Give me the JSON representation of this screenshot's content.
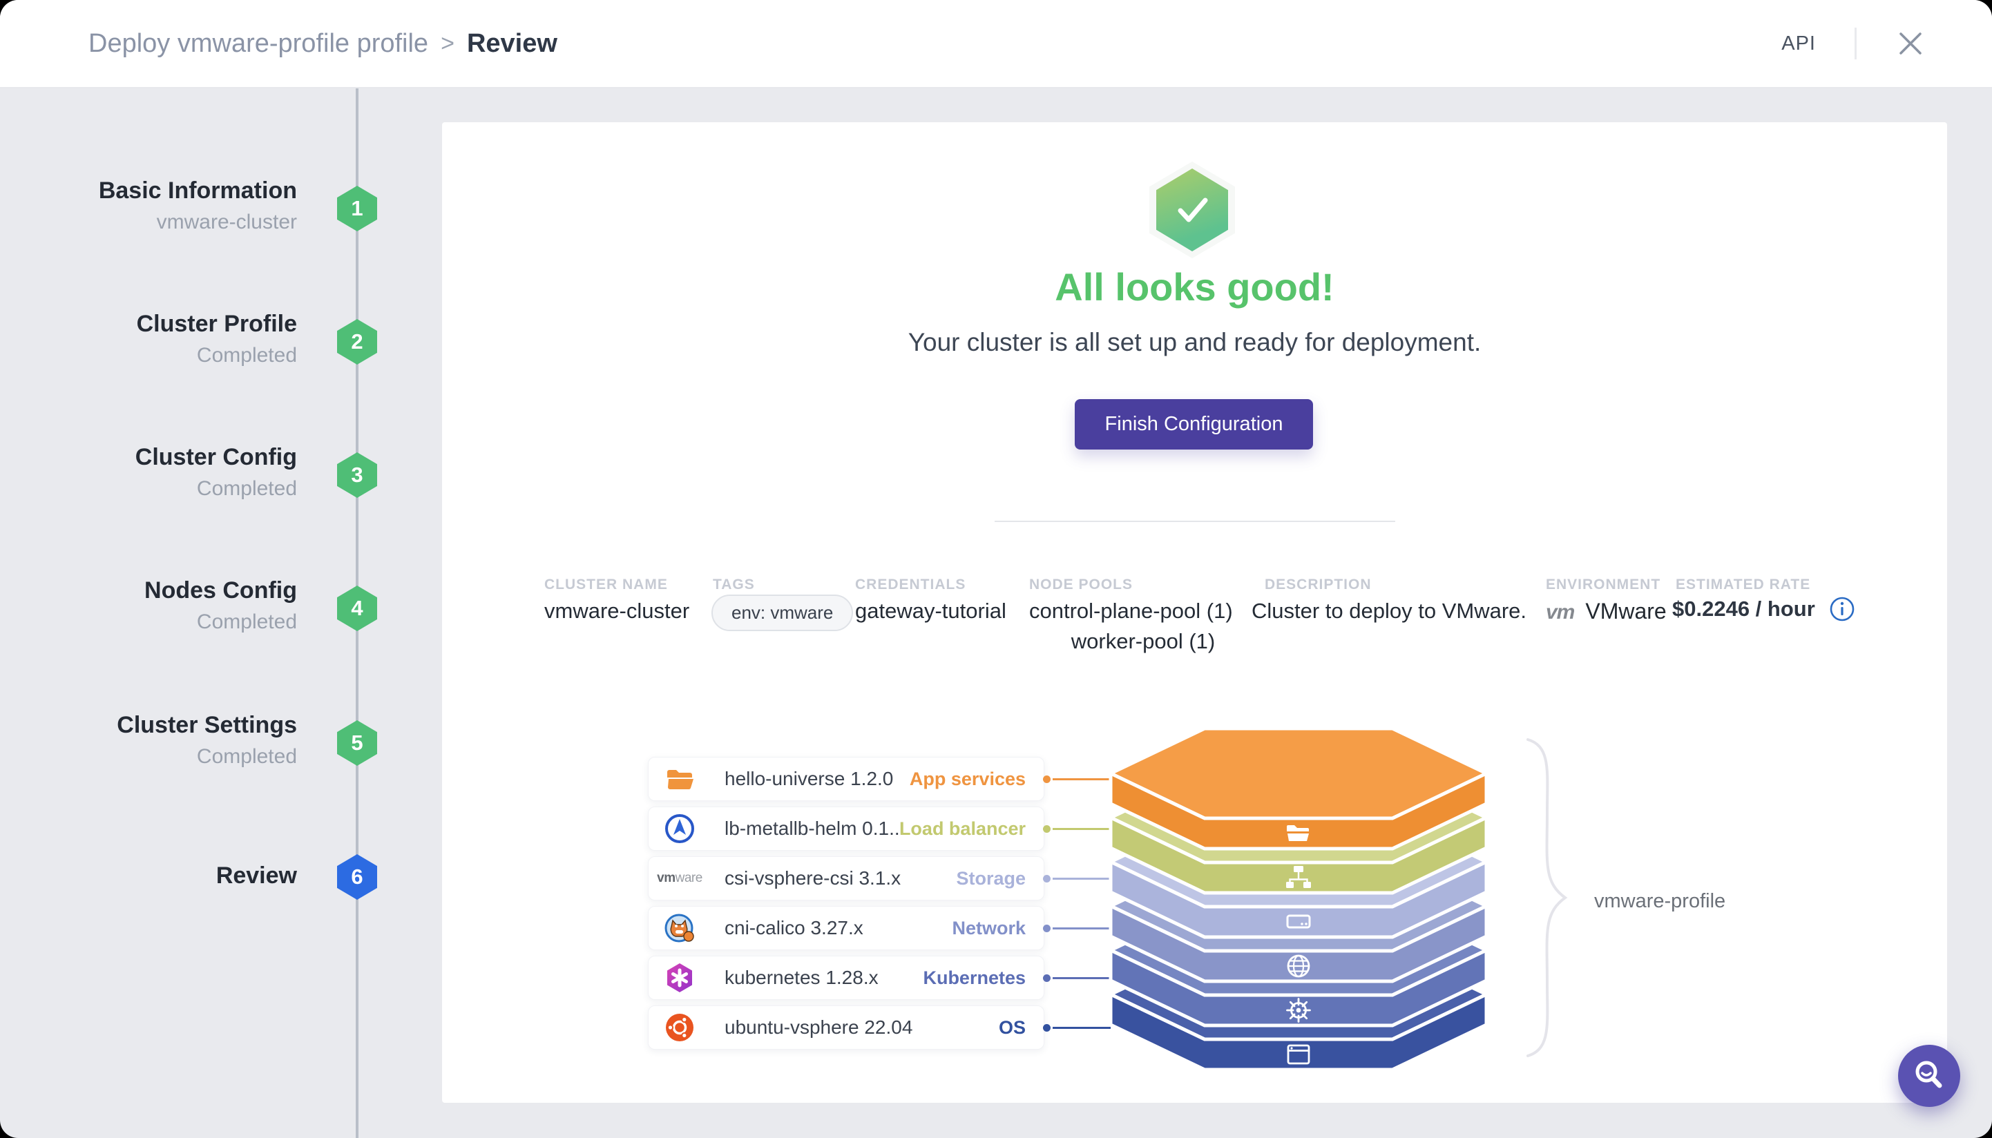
{
  "header": {
    "title_prefix": "Deploy vmware-profile profile",
    "separator": ">",
    "title_current": "Review",
    "api_label": "API"
  },
  "steps": [
    {
      "number": "1",
      "title": "Basic Information",
      "subtitle": "vmware-cluster",
      "state": "done"
    },
    {
      "number": "2",
      "title": "Cluster Profile",
      "subtitle": "Completed",
      "state": "done"
    },
    {
      "number": "3",
      "title": "Cluster Config",
      "subtitle": "Completed",
      "state": "done"
    },
    {
      "number": "4",
      "title": "Nodes Config",
      "subtitle": "Completed",
      "state": "done"
    },
    {
      "number": "5",
      "title": "Cluster Settings",
      "subtitle": "Completed",
      "state": "done"
    },
    {
      "number": "6",
      "title": "Review",
      "subtitle": "",
      "state": "active"
    }
  ],
  "step_colors": {
    "done": "#4fbe76",
    "active": "#2c6be2"
  },
  "status": {
    "icon": "check-hexagon-icon",
    "title": "All looks good!",
    "subtitle": "Your cluster is all set up and ready for deployment.",
    "button_label": "Finish Configuration",
    "title_color": "#57c36b",
    "button_color": "#4a3f9e"
  },
  "summary": {
    "cluster_name": {
      "label": "CLUSTER NAME",
      "value": "vmware-cluster"
    },
    "tags": {
      "label": "TAGS",
      "value": "env: vmware"
    },
    "credentials": {
      "label": "CREDENTIALS",
      "value": "gateway-tutorial"
    },
    "node_pools": {
      "label": "NODE POOLS",
      "values": [
        "control-plane-pool (1)",
        "worker-pool (1)"
      ]
    },
    "description": {
      "label": "DESCRIPTION",
      "value": "Cluster to deploy to VMware."
    },
    "environment": {
      "label": "ENVIRONMENT",
      "logo": "vmware-vm-logo",
      "value": "VMware"
    },
    "estimated_rate": {
      "label": "ESTIMATED RATE",
      "value": "$0.2246 / hour",
      "info_icon": "info-icon"
    }
  },
  "profile": {
    "name": "vmware-profile",
    "layers": [
      {
        "name": "hello-universe 1.2.0",
        "type": "App services",
        "icon": "folder-icon",
        "band_icon": "folder",
        "label_color": "#ef9440",
        "top": "#f59d47",
        "front": "#ee8f33"
      },
      {
        "name": "lb-metallb-helm 0.1...",
        "type": "Load balancer",
        "icon": "metallb-icon",
        "band_icon": "sitemap",
        "label_color": "#c2c96f",
        "top": "#d1d78f",
        "front": "#c3ca75"
      },
      {
        "name": "csi-vsphere-csi 3.1.x",
        "type": "Storage",
        "icon": "vmware-wordmark-icon",
        "band_icon": "storage",
        "label_color": "#a9b2da",
        "top": "#bec5e5",
        "front": "#abb4dc"
      },
      {
        "name": "cni-calico 3.27.x",
        "type": "Network",
        "icon": "calico-icon",
        "band_icon": "globe",
        "label_color": "#8290c9",
        "top": "#9ca7d3",
        "front": "#8995c9"
      },
      {
        "name": "kubernetes 1.28.x",
        "type": "Kubernetes",
        "icon": "kubernetes-icon",
        "band_icon": "helm",
        "label_color": "#5b6db4",
        "top": "#7686c2",
        "front": "#6274b7"
      },
      {
        "name": "ubuntu-vsphere 22.04",
        "type": "OS",
        "icon": "ubuntu-icon",
        "band_icon": "window",
        "label_color": "#32519f",
        "top": "#4a60aa",
        "front": "#39529f"
      }
    ]
  },
  "fab": {
    "icon": "search-icon",
    "color": "#5a52b2"
  }
}
